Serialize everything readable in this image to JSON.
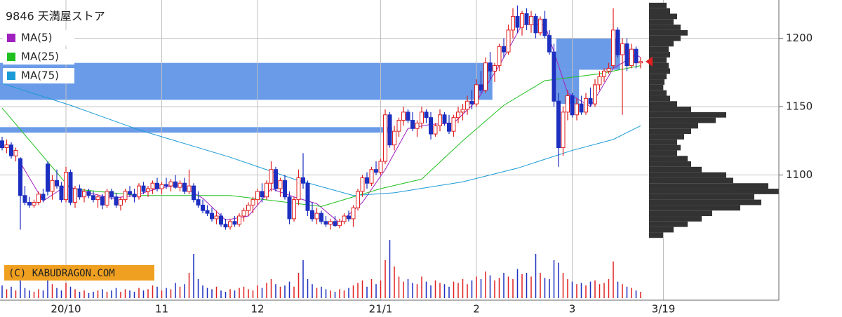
{
  "chart_data": {
    "type": "candlestick",
    "title": "9846 天満屋ストア",
    "xlim": [
      0,
      145
    ],
    "ylim": [
      1010,
      1228
    ],
    "yticks": [
      1100,
      1150,
      1200
    ],
    "xticks": [
      {
        "value": 14,
        "label": "20/10"
      },
      {
        "value": 35,
        "label": "11"
      },
      {
        "value": 56,
        "label": "12"
      },
      {
        "value": 83,
        "label": "21/1"
      },
      {
        "value": 104,
        "label": "2"
      },
      {
        "value": 125,
        "label": "3"
      },
      {
        "value": 145,
        "label": "3/19"
      }
    ],
    "grid": true,
    "up_color": "#e02020",
    "down_color": "#1c2fc0",
    "zone_color": "#6a9be8",
    "marker": 1183,
    "marker_color": "#e02020",
    "profile_color": "#333333",
    "watermark": "(C) KABUDRAGON.COM",
    "ohlc": [
      [
        1125,
        1128,
        1118,
        1120
      ],
      [
        1120,
        1126,
        1116,
        1122
      ],
      [
        1122,
        1124,
        1112,
        1114
      ],
      [
        1114,
        1120,
        1110,
        1118
      ],
      [
        1112,
        1113,
        1060,
        1085
      ],
      [
        1085,
        1092,
        1078,
        1080
      ],
      [
        1080,
        1084,
        1076,
        1078
      ],
      [
        1078,
        1082,
        1076,
        1080
      ],
      [
        1080,
        1088,
        1078,
        1086
      ],
      [
        1086,
        1090,
        1080,
        1082
      ],
      [
        1108,
        1110,
        1085,
        1088
      ],
      [
        1088,
        1100,
        1082,
        1096
      ],
      [
        1096,
        1104,
        1090,
        1092
      ],
      [
        1092,
        1095,
        1080,
        1082
      ],
      [
        1082,
        1106,
        1080,
        1102
      ],
      [
        1102,
        1104,
        1078,
        1080
      ],
      [
        1080,
        1092,
        1076,
        1090
      ],
      [
        1090,
        1093,
        1082,
        1084
      ],
      [
        1084,
        1090,
        1080,
        1088
      ],
      [
        1088,
        1090,
        1083,
        1085
      ],
      [
        1085,
        1088,
        1080,
        1082
      ],
      [
        1082,
        1086,
        1076,
        1084
      ],
      [
        1084,
        1086,
        1075,
        1078
      ],
      [
        1078,
        1090,
        1076,
        1088
      ],
      [
        1088,
        1090,
        1082,
        1084
      ],
      [
        1084,
        1087,
        1076,
        1078
      ],
      [
        1078,
        1084,
        1074,
        1082
      ],
      [
        1082,
        1090,
        1080,
        1088
      ],
      [
        1088,
        1092,
        1084,
        1086
      ],
      [
        1086,
        1090,
        1080,
        1084
      ],
      [
        1084,
        1094,
        1082,
        1092
      ],
      [
        1092,
        1095,
        1086,
        1088
      ],
      [
        1088,
        1092,
        1084,
        1090
      ],
      [
        1090,
        1096,
        1086,
        1094
      ],
      [
        1094,
        1098,
        1088,
        1090
      ],
      [
        1090,
        1095,
        1086,
        1093
      ],
      [
        1093,
        1098,
        1090,
        1092
      ],
      [
        1092,
        1097,
        1088,
        1095
      ],
      [
        1095,
        1100,
        1090,
        1091
      ],
      [
        1091,
        1096,
        1088,
        1094
      ],
      [
        1094,
        1098,
        1086,
        1088
      ],
      [
        1088,
        1104,
        1086,
        1092
      ],
      [
        1092,
        1094,
        1080,
        1082
      ],
      [
        1082,
        1088,
        1076,
        1078
      ],
      [
        1078,
        1082,
        1072,
        1074
      ],
      [
        1074,
        1078,
        1070,
        1072
      ],
      [
        1072,
        1076,
        1066,
        1068
      ],
      [
        1068,
        1074,
        1064,
        1070
      ],
      [
        1070,
        1072,
        1062,
        1064
      ],
      [
        1064,
        1068,
        1060,
        1062
      ],
      [
        1062,
        1068,
        1060,
        1066
      ],
      [
        1066,
        1070,
        1062,
        1064
      ],
      [
        1064,
        1072,
        1062,
        1070
      ],
      [
        1070,
        1076,
        1066,
        1074
      ],
      [
        1074,
        1080,
        1070,
        1078
      ],
      [
        1078,
        1084,
        1072,
        1082
      ],
      [
        1082,
        1090,
        1078,
        1088
      ],
      [
        1088,
        1094,
        1080,
        1084
      ],
      [
        1084,
        1096,
        1082,
        1094
      ],
      [
        1094,
        1110,
        1088,
        1104
      ],
      [
        1104,
        1106,
        1088,
        1090
      ],
      [
        1090,
        1098,
        1084,
        1096
      ],
      [
        1096,
        1100,
        1082,
        1084
      ],
      [
        1084,
        1088,
        1064,
        1068
      ],
      [
        1068,
        1084,
        1066,
        1082
      ],
      [
        1082,
        1104,
        1078,
        1098
      ],
      [
        1098,
        1116,
        1090,
        1094
      ],
      [
        1094,
        1096,
        1070,
        1074
      ],
      [
        1074,
        1080,
        1066,
        1068
      ],
      [
        1068,
        1076,
        1064,
        1072
      ],
      [
        1072,
        1074,
        1064,
        1066
      ],
      [
        1066,
        1070,
        1062,
        1064
      ],
      [
        1064,
        1068,
        1060,
        1066
      ],
      [
        1066,
        1070,
        1062,
        1063
      ],
      [
        1063,
        1068,
        1061,
        1066
      ],
      [
        1066,
        1072,
        1064,
        1070
      ],
      [
        1070,
        1074,
        1066,
        1068
      ],
      [
        1068,
        1078,
        1062,
        1076
      ],
      [
        1076,
        1090,
        1074,
        1088
      ],
      [
        1088,
        1100,
        1084,
        1098
      ],
      [
        1098,
        1102,
        1090,
        1094
      ],
      [
        1094,
        1106,
        1092,
        1104
      ],
      [
        1104,
        1110,
        1100,
        1102
      ],
      [
        1102,
        1112,
        1100,
        1110
      ],
      [
        1110,
        1148,
        1108,
        1144
      ],
      [
        1144,
        1146,
        1120,
        1122
      ],
      [
        1122,
        1136,
        1118,
        1132
      ],
      [
        1132,
        1142,
        1128,
        1140
      ],
      [
        1140,
        1150,
        1136,
        1146
      ],
      [
        1146,
        1148,
        1138,
        1140
      ],
      [
        1140,
        1146,
        1132,
        1134
      ],
      [
        1134,
        1140,
        1128,
        1138
      ],
      [
        1138,
        1150,
        1134,
        1146
      ],
      [
        1146,
        1148,
        1138,
        1142
      ],
      [
        1142,
        1146,
        1126,
        1130
      ],
      [
        1130,
        1138,
        1128,
        1136
      ],
      [
        1136,
        1148,
        1132,
        1144
      ],
      [
        1144,
        1146,
        1136,
        1138
      ],
      [
        1138,
        1144,
        1130,
        1132
      ],
      [
        1132,
        1144,
        1128,
        1142
      ],
      [
        1142,
        1150,
        1138,
        1146
      ],
      [
        1146,
        1152,
        1140,
        1148
      ],
      [
        1148,
        1158,
        1144,
        1154
      ],
      [
        1154,
        1162,
        1148,
        1152
      ],
      [
        1152,
        1170,
        1150,
        1166
      ],
      [
        1166,
        1176,
        1160,
        1162
      ],
      [
        1162,
        1186,
        1160,
        1182
      ],
      [
        1182,
        1190,
        1170,
        1176
      ],
      [
        1176,
        1182,
        1168,
        1180
      ],
      [
        1180,
        1196,
        1176,
        1194
      ],
      [
        1194,
        1200,
        1186,
        1190
      ],
      [
        1190,
        1210,
        1188,
        1206
      ],
      [
        1206,
        1222,
        1200,
        1216
      ],
      [
        1216,
        1224,
        1204,
        1208
      ],
      [
        1208,
        1220,
        1202,
        1218
      ],
      [
        1218,
        1222,
        1206,
        1210
      ],
      [
        1210,
        1220,
        1204,
        1216
      ],
      [
        1216,
        1218,
        1200,
        1204
      ],
      [
        1204,
        1216,
        1202,
        1214
      ],
      [
        1214,
        1220,
        1200,
        1202
      ],
      [
        1202,
        1206,
        1188,
        1190
      ],
      [
        1190,
        1196,
        1150,
        1154
      ],
      [
        1154,
        1160,
        1106,
        1120
      ],
      [
        1120,
        1150,
        1114,
        1146
      ],
      [
        1146,
        1162,
        1140,
        1158
      ],
      [
        1158,
        1160,
        1142,
        1144
      ],
      [
        1144,
        1156,
        1140,
        1152
      ],
      [
        1152,
        1158,
        1144,
        1146
      ],
      [
        1146,
        1160,
        1144,
        1156
      ],
      [
        1156,
        1164,
        1150,
        1152
      ],
      [
        1152,
        1170,
        1150,
        1166
      ],
      [
        1166,
        1176,
        1162,
        1172
      ],
      [
        1172,
        1178,
        1168,
        1176
      ],
      [
        1176,
        1182,
        1174,
        1178
      ],
      [
        1180,
        1222,
        1178,
        1206
      ],
      [
        1206,
        1208,
        1186,
        1188
      ],
      [
        1188,
        1200,
        1144,
        1196
      ],
      [
        1196,
        1200,
        1176,
        1180
      ],
      [
        1180,
        1196,
        1178,
        1192
      ],
      [
        1192,
        1194,
        1178,
        1182
      ],
      [
        1182,
        1186,
        1178,
        1183
      ]
    ],
    "volume": [
      20,
      14,
      18,
      12,
      30,
      16,
      12,
      10,
      14,
      12,
      28,
      22,
      16,
      12,
      24,
      18,
      14,
      10,
      12,
      8,
      10,
      12,
      14,
      10,
      12,
      16,
      10,
      14,
      12,
      10,
      16,
      12,
      14,
      20,
      18,
      12,
      16,
      14,
      24,
      18,
      22,
      40,
      70,
      30,
      20,
      16,
      14,
      18,
      12,
      10,
      14,
      12,
      16,
      18,
      14,
      12,
      20,
      16,
      24,
      30,
      22,
      18,
      20,
      26,
      18,
      40,
      60,
      30,
      22,
      16,
      18,
      14,
      12,
      10,
      14,
      12,
      16,
      20,
      24,
      28,
      18,
      30,
      22,
      28,
      60,
      92,
      50,
      34,
      26,
      30,
      24,
      22,
      34,
      26,
      20,
      28,
      24,
      22,
      18,
      26,
      24,
      30,
      22,
      28,
      34,
      30,
      42,
      36,
      28,
      32,
      40,
      34,
      30,
      46,
      38,
      40,
      34,
      70,
      40,
      32,
      30,
      60,
      56,
      40,
      30,
      26,
      22,
      24,
      20,
      26,
      28,
      22,
      24,
      30,
      58,
      26,
      22,
      18,
      16,
      12,
      10
    ],
    "vlim": [
      0,
      100
    ],
    "series": [
      {
        "name": "MA(5)",
        "color": "#a020c0",
        "x": [
          4,
          9,
          14,
          19,
          24,
          29,
          34,
          39,
          44,
          49,
          54,
          59,
          64,
          69,
          74,
          79,
          84,
          89,
          94,
          99,
          104,
          109,
          114,
          119,
          124,
          129,
          134,
          139,
          140
        ],
        "values": [
          1109,
          1081,
          1092,
          1087,
          1083,
          1085,
          1090,
          1093,
          1083,
          1067,
          1070,
          1090,
          1084,
          1079,
          1065,
          1080,
          1104,
          1134,
          1137,
          1138,
          1154,
          1180,
          1210,
          1210,
          1160,
          1150,
          1178,
          1188,
          1186
        ]
      },
      {
        "name": "MA(25)",
        "color": "#20c020",
        "x": [
          0,
          15,
          30,
          50,
          70,
          83,
          92,
          101,
          110,
          119,
          131,
          140
        ],
        "values": [
          1149,
          1090,
          1085,
          1085,
          1077,
          1090,
          1097,
          1125,
          1151,
          1169,
          1174,
          1180
        ]
      },
      {
        "name": "MA(75)",
        "color": "#1a9ad6",
        "x": [
          0,
          15,
          30,
          50,
          64,
          77,
          86,
          101,
          113,
          125,
          134,
          140
        ],
        "values": [
          1167,
          1151,
          1133,
          1113,
          1097,
          1085,
          1087,
          1095,
          1105,
          1118,
          1126,
          1136
        ]
      }
    ],
    "zones": [
      [
        0,
        107,
        1155,
        1182
      ],
      [
        0,
        85,
        1131,
        1135
      ],
      [
        122,
        135,
        1177,
        1200
      ],
      [
        122,
        126,
        1152,
        1177
      ]
    ],
    "profile": {
      "bins": [
        1054,
        1058,
        1062,
        1066,
        1070,
        1074,
        1078,
        1082,
        1086,
        1090,
        1094,
        1098,
        1102,
        1106,
        1110,
        1114,
        1118,
        1122,
        1126,
        1130,
        1134,
        1138,
        1142,
        1146,
        1150,
        1154,
        1158,
        1162,
        1166,
        1170,
        1174,
        1178,
        1182,
        1186,
        1190,
        1194,
        1198,
        1202,
        1206,
        1210,
        1214,
        1218,
        1222,
        1226
      ],
      "counts": [
        20,
        35,
        55,
        75,
        90,
        130,
        160,
        150,
        185,
        170,
        120,
        110,
        75,
        60,
        55,
        40,
        45,
        40,
        50,
        60,
        70,
        95,
        110,
        60,
        40,
        30,
        25,
        20,
        22,
        25,
        30,
        28,
        25,
        30,
        28,
        35,
        45,
        55,
        45,
        35,
        40,
        30,
        25
      ]
    }
  }
}
